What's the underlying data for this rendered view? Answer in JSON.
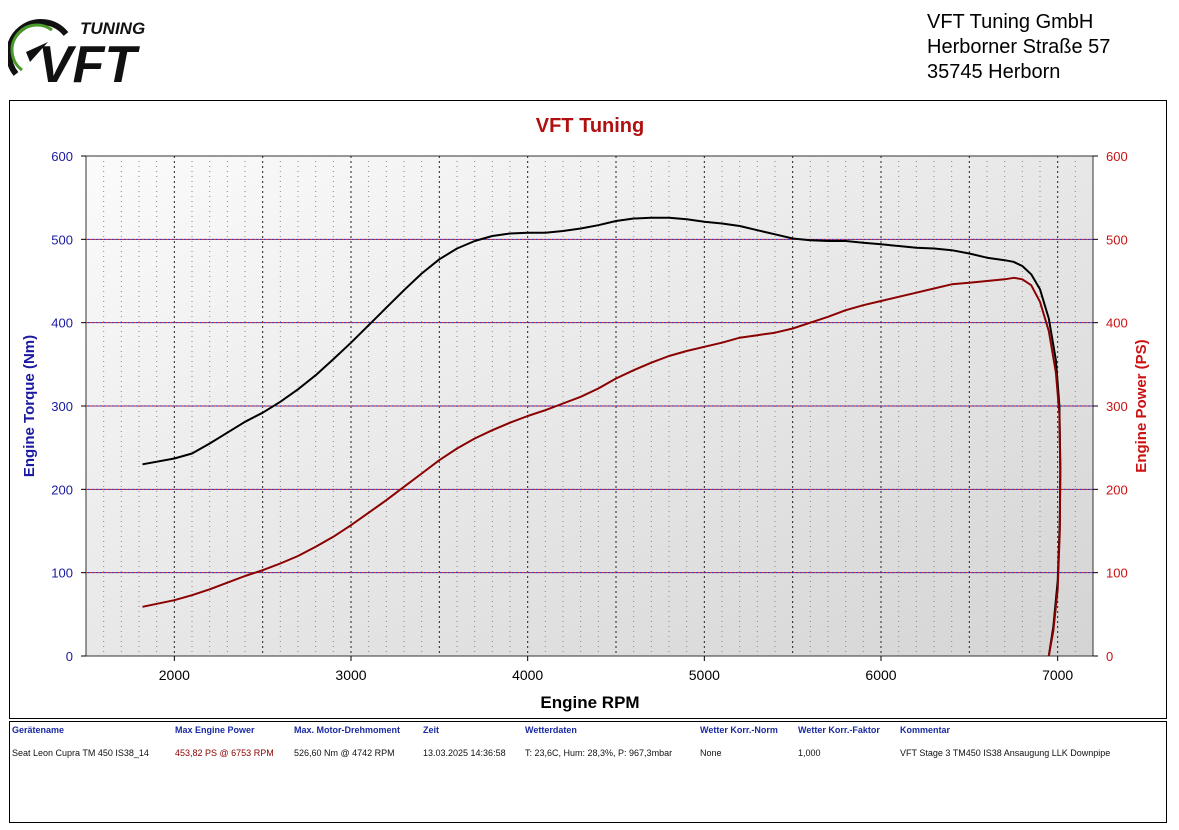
{
  "logo": {
    "text": "TUNING",
    "mark": "VFT"
  },
  "company": {
    "name": "VFT Tuning GmbH",
    "street": "Herborner Straße 57",
    "city": "35745 Herborn"
  },
  "colors": {
    "torque_line": "#000000",
    "power_line": "#8b0000",
    "left_axis": "#1a1aa0",
    "right_axis": "#cc1111",
    "title": "#b01010",
    "table_header": "#1a2aa0"
  },
  "chart_data": {
    "type": "line",
    "title": "VFT Tuning",
    "xlabel": "Engine RPM",
    "ylabel_left": "Engine Torque (Nm)",
    "ylabel_right": "Engine Power (PS)",
    "xlim": [
      1500,
      7200
    ],
    "ylim_left": [
      0,
      600
    ],
    "ylim_right": [
      0,
      600
    ],
    "x_ticks": [
      "2000",
      "3000",
      "4000",
      "5000",
      "6000",
      "7000"
    ],
    "y_ticks_left": [
      "0",
      "100",
      "200",
      "300",
      "400",
      "500",
      "600"
    ],
    "y_ticks_right": [
      "0",
      "100",
      "200",
      "300",
      "400",
      "500",
      "600"
    ],
    "grid": true,
    "series": [
      {
        "key": "torque",
        "axis": "left",
        "color": "#000000",
        "points": [
          [
            1820,
            230
          ],
          [
            2000,
            237
          ],
          [
            2100,
            243
          ],
          [
            2200,
            255
          ],
          [
            2300,
            268
          ],
          [
            2400,
            281
          ],
          [
            2500,
            292
          ],
          [
            2600,
            305
          ],
          [
            2700,
            320
          ],
          [
            2800,
            337
          ],
          [
            2900,
            356
          ],
          [
            3000,
            376
          ],
          [
            3100,
            397
          ],
          [
            3200,
            418
          ],
          [
            3300,
            439
          ],
          [
            3400,
            459
          ],
          [
            3500,
            476
          ],
          [
            3600,
            489
          ],
          [
            3700,
            498
          ],
          [
            3800,
            504
          ],
          [
            3900,
            507
          ],
          [
            4000,
            508
          ],
          [
            4100,
            508
          ],
          [
            4200,
            510
          ],
          [
            4300,
            513
          ],
          [
            4400,
            517
          ],
          [
            4500,
            522
          ],
          [
            4600,
            525
          ],
          [
            4700,
            526
          ],
          [
            4800,
            526
          ],
          [
            4900,
            524
          ],
          [
            5000,
            521
          ],
          [
            5100,
            519
          ],
          [
            5200,
            516
          ],
          [
            5300,
            511
          ],
          [
            5400,
            506
          ],
          [
            5500,
            501
          ],
          [
            5600,
            499
          ],
          [
            5700,
            498
          ],
          [
            5800,
            498
          ],
          [
            5900,
            496
          ],
          [
            6000,
            494
          ],
          [
            6100,
            492
          ],
          [
            6200,
            490
          ],
          [
            6300,
            489
          ],
          [
            6400,
            487
          ],
          [
            6500,
            483
          ],
          [
            6600,
            478
          ],
          [
            6700,
            475
          ],
          [
            6750,
            473
          ],
          [
            6800,
            468
          ],
          [
            6850,
            458
          ],
          [
            6900,
            440
          ],
          [
            6950,
            405
          ],
          [
            6990,
            355
          ],
          [
            7010,
            300
          ],
          [
            7015,
            230
          ],
          [
            7012,
            160
          ],
          [
            7000,
            90
          ],
          [
            6975,
            35
          ],
          [
            6950,
            0
          ]
        ]
      },
      {
        "key": "power",
        "axis": "right",
        "color": "#8b0000",
        "points": [
          [
            1820,
            59
          ],
          [
            2000,
            67
          ],
          [
            2100,
            73
          ],
          [
            2200,
            80
          ],
          [
            2300,
            88
          ],
          [
            2400,
            96
          ],
          [
            2500,
            103
          ],
          [
            2600,
            111
          ],
          [
            2700,
            120
          ],
          [
            2800,
            131
          ],
          [
            2900,
            143
          ],
          [
            3000,
            157
          ],
          [
            3100,
            172
          ],
          [
            3200,
            187
          ],
          [
            3300,
            203
          ],
          [
            3400,
            219
          ],
          [
            3500,
            235
          ],
          [
            3600,
            249
          ],
          [
            3700,
            261
          ],
          [
            3800,
            271
          ],
          [
            3900,
            280
          ],
          [
            4000,
            288
          ],
          [
            4100,
            295
          ],
          [
            4200,
            303
          ],
          [
            4300,
            311
          ],
          [
            4400,
            321
          ],
          [
            4500,
            333
          ],
          [
            4600,
            343
          ],
          [
            4700,
            352
          ],
          [
            4800,
            360
          ],
          [
            4900,
            366
          ],
          [
            5000,
            371
          ],
          [
            5100,
            376
          ],
          [
            5200,
            382
          ],
          [
            5300,
            385
          ],
          [
            5400,
            388
          ],
          [
            5500,
            393
          ],
          [
            5600,
            400
          ],
          [
            5700,
            407
          ],
          [
            5800,
            415
          ],
          [
            5900,
            421
          ],
          [
            6000,
            426
          ],
          [
            6100,
            431
          ],
          [
            6200,
            436
          ],
          [
            6300,
            441
          ],
          [
            6400,
            446
          ],
          [
            6500,
            448
          ],
          [
            6600,
            450
          ],
          [
            6700,
            452
          ],
          [
            6753,
            453.82
          ],
          [
            6800,
            452
          ],
          [
            6850,
            445
          ],
          [
            6900,
            425
          ],
          [
            6950,
            390
          ],
          [
            6990,
            340
          ],
          [
            7010,
            290
          ],
          [
            7015,
            220
          ],
          [
            7012,
            150
          ],
          [
            7000,
            80
          ],
          [
            6975,
            30
          ],
          [
            6950,
            0
          ]
        ]
      }
    ]
  },
  "table": {
    "headers": [
      "Gerätename",
      "Max Engine Power",
      "Max. Motor-Drehmoment",
      "Zeit",
      "Wetterdaten",
      "Wetter Korr.-Norm",
      "Wetter Korr.-Faktor",
      "Kommentar"
    ],
    "values": [
      "Seat Leon Cupra TM 450 IS38_14",
      "453,82 PS @ 6753 RPM",
      "526,60 Nm @ 4742 RPM",
      "13.03.2025 14:36:58",
      "T: 23,6C, Hum: 28,3%, P: 967,3mbar",
      "None",
      "1,000",
      "VFT Stage 3 TM450 IS38 Ansaugung LLK Downpipe"
    ]
  }
}
